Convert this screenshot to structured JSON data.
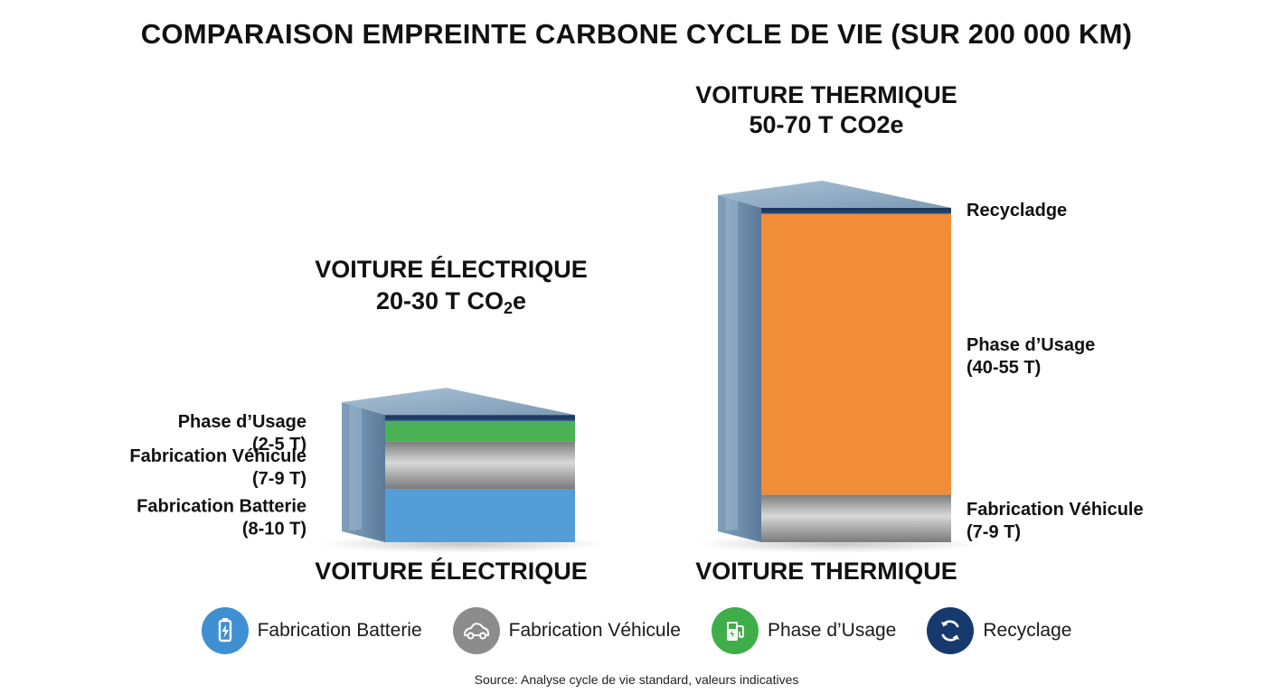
{
  "title": "COMPARAISON EMPREINTE CARBONE CYCLE DE VIE (SUR 200 000 KM)",
  "source": "Source: Analyse cycle de vie standard, valeurs indicatives",
  "colors": {
    "battery": "#4a97d6",
    "vehicle": "#9a9a9a",
    "usage_ev": "#3fae4a",
    "usage_thermal": "#f0862a",
    "recycling": "#163a6e"
  },
  "legend": [
    {
      "label": "Fabrication Batterie",
      "icon": "battery-icon",
      "color": "#3f8fd2"
    },
    {
      "label": "Fabrication Véhicule",
      "icon": "car-icon",
      "color": "#8c8c8c"
    },
    {
      "label": "Phase d’Usage",
      "icon": "charging-station-icon",
      "color": "#3fae4a"
    },
    {
      "label": "Recyclage",
      "icon": "recycle-icon",
      "color": "#163a6e"
    }
  ],
  "chart_data": {
    "type": "bar",
    "stacked": true,
    "unit": "T CO2e",
    "categories": [
      "VOITURE ÉLECTRIQUE",
      "VOITURE THERMIQUE"
    ],
    "bars": [
      {
        "category": "VOITURE ÉLECTRIQUE",
        "header_line1": "VOITURE ÉLECTRIQUE",
        "header_total_prefix": "20-30 T CO",
        "header_total_sub": "2",
        "header_total_suffix": "e",
        "total_range": [
          20,
          30
        ],
        "segments": [
          {
            "key": "battery",
            "name": "Fabrication Batterie",
            "value": 9,
            "range": [
              8,
              10
            ],
            "label_line1": "Fabrication Batterie",
            "label_line2": "(8-10 T)"
          },
          {
            "key": "vehicle",
            "name": "Fabrication Véhicule",
            "value": 8,
            "range": [
              7,
              9
            ],
            "label_line1": "Fabrication Véhicule",
            "label_line2": "(7-9 T)"
          },
          {
            "key": "usage_ev",
            "name": "Phase d’Usage",
            "value": 3.5,
            "range": [
              2,
              5
            ],
            "label_line1": "Phase d’Usage",
            "label_line2": "(2-5 T)"
          },
          {
            "key": "recycling",
            "name": "Recyclage",
            "value": 1,
            "label_line1": "",
            "label_line2": ""
          }
        ]
      },
      {
        "category": "VOITURE THERMIQUE",
        "header_line1": "VOITURE THERMIQUE",
        "header_total": "50-70 T CO2e",
        "total_range": [
          50,
          70
        ],
        "segments": [
          {
            "key": "vehicle",
            "name": "Fabrication Véhicule",
            "value": 8,
            "range": [
              7,
              9
            ],
            "label_line1": "Fabrication Véhicule",
            "label_line2": "(7-9 T)"
          },
          {
            "key": "usage_thermal",
            "name": "Phase d’Usage",
            "value": 47.5,
            "range": [
              40,
              55
            ],
            "label_line1": "Phase d’Usage",
            "label_line2": "(40-55 T)"
          },
          {
            "key": "recycling",
            "name": "Recyclage",
            "value": 1,
            "range": [
              -1
            ],
            "label_line1": "Recycladge",
            "label_line2": ""
          }
        ]
      }
    ]
  }
}
